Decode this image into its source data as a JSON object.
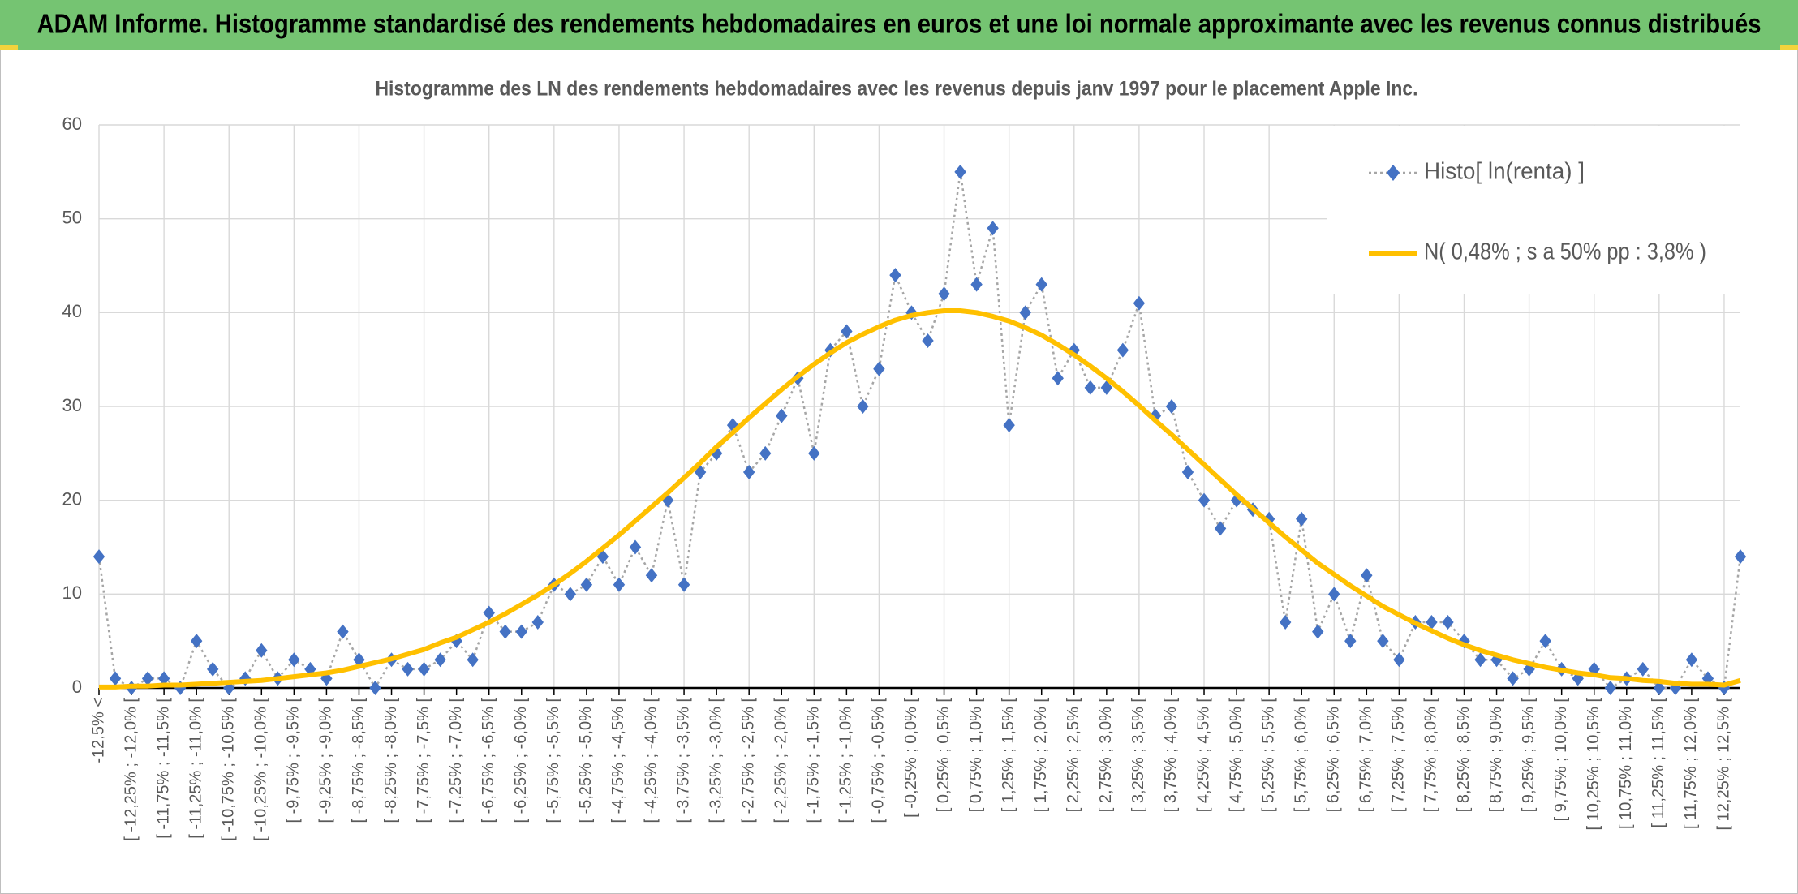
{
  "header": {
    "title": "ADAM Informe. Histogramme standardisé des rendements hebdomadaires en euros et une loi normale approximante avec les revenus connus distribués"
  },
  "chart_data": {
    "type": "line",
    "title": "Histogramme des LN des rendements hebdomadaires avec les revenus depuis janv 1997 pour le placement Apple Inc.",
    "categories": [
      "-12,5% <",
      null,
      "[ -12,25% ; -12,0% [",
      null,
      "[ -11,75% ; -11,5% [",
      null,
      "[ -11,25% ; -11,0% [",
      null,
      "[ -10,75% ; -10,5% [",
      null,
      "[ -10,25% ; -10,0% [",
      null,
      "[ -9,75% ; -9,5% [",
      null,
      "[ -9,25% ; -9,0% [",
      null,
      "[ -8,75% ; -8,5% [",
      null,
      "[ -8,25% ; -8,0% [",
      null,
      "[ -7,75% ; -7,5% [",
      null,
      "[ -7,25% ; -7,0% [",
      null,
      "[ -6,75% ; -6,5% [",
      null,
      "[ -6,25% ; -6,0% [",
      null,
      "[ -5,75% ; -5,5% [",
      null,
      "[ -5,25% ; -5,0% [",
      null,
      "[ -4,75% ; -4,5% [",
      null,
      "[ -4,25% ; -4,0% [",
      null,
      "[ -3,75% ; -3,5% [",
      null,
      "[ -3,25% ; -3,0% [",
      null,
      "[ -2,75% ; -2,5% [",
      null,
      "[ -2,25% ; -2,0% [",
      null,
      "[ -1,75% ; -1,5% [",
      null,
      "[ -1,25% ; -1,0% [",
      null,
      "[ -0,75% ; -0,5% [",
      null,
      "[ -0,25% ; 0,0% [",
      null,
      "[ 0,25% ; 0,5% [",
      null,
      "[ 0,75% ; 1,0% [",
      null,
      "[ 1,25% ; 1,5% [",
      null,
      "[ 1,75% ; 2,0% [",
      null,
      "[ 2,25% ; 2,5% [",
      null,
      "[ 2,75% ; 3,0% [",
      null,
      "[ 3,25% ; 3,5% [",
      null,
      "[ 3,75% ; 4,0% [",
      null,
      "[ 4,25% ; 4,5% [",
      null,
      "[ 4,75% ; 5,0% [",
      null,
      "[ 5,25% ; 5,5% [",
      null,
      "[ 5,75% ; 6,0% [",
      null,
      "[ 6,25% ; 6,5% [",
      null,
      "[ 6,75% ; 7,0% [",
      null,
      "[ 7,25% ; 7,5% [",
      null,
      "[ 7,75% ; 8,0% [",
      null,
      "[ 8,25% ; 8,5% [",
      null,
      "[ 8,75% ; 9,0% [",
      null,
      "[ 9,25% ; 9,5% [",
      null,
      "[ 9,75% ; 10,0% [",
      null,
      "[ 10,25% ; 10,5% [",
      null,
      "[ 10,75% ; 11,0% [",
      null,
      "[ 11,25% ; 11,5% [",
      null,
      "[ 11,75% ; 12,0% [",
      null,
      "[ 12,25% ; 12,5% [",
      null
    ],
    "series": [
      {
        "name": "Histo[ ln(renta) ]",
        "color": "#4472c4",
        "line_color": "#a6a6a6",
        "line_style": "dotted",
        "marker": "diamond",
        "values": [
          14,
          1,
          0,
          1,
          1,
          0,
          5,
          2,
          0,
          1,
          4,
          1,
          3,
          2,
          1,
          6,
          3,
          0,
          3,
          2,
          2,
          3,
          5,
          3,
          8,
          6,
          6,
          7,
          11,
          10,
          11,
          14,
          11,
          15,
          12,
          20,
          11,
          23,
          25,
          28,
          23,
          25,
          29,
          33,
          25,
          36,
          38,
          30,
          34,
          44,
          40,
          37,
          42,
          55,
          43,
          49,
          28,
          40,
          43,
          33,
          36,
          32,
          32,
          36,
          41,
          29,
          30,
          23,
          20,
          17,
          20,
          19,
          18,
          7,
          18,
          6,
          10,
          5,
          12,
          5,
          3,
          7,
          7,
          7,
          5,
          3,
          3,
          1,
          2,
          5,
          2,
          1,
          2,
          0,
          1,
          2,
          0,
          0,
          3,
          1,
          0,
          14
        ]
      },
      {
        "name": "N( 0,48% ; s a 50% pp : 3,8% )",
        "color": "#ffc000",
        "line_style": "solid",
        "marker": "none",
        "values": [
          0.1,
          0.1,
          0.2,
          0.2,
          0.3,
          0.3,
          0.4,
          0.5,
          0.6,
          0.7,
          0.8,
          1.0,
          1.2,
          1.4,
          1.6,
          1.9,
          2.3,
          2.7,
          3.1,
          3.6,
          4.1,
          4.8,
          5.4,
          6.2,
          7.0,
          7.9,
          8.9,
          9.9,
          11.0,
          12.2,
          13.5,
          14.9,
          16.3,
          17.8,
          19.3,
          20.8,
          22.4,
          24.0,
          25.7,
          27.2,
          28.8,
          30.3,
          31.8,
          33.2,
          34.5,
          35.7,
          36.8,
          37.7,
          38.5,
          39.2,
          39.7,
          40.0,
          40.2,
          40.2,
          40.0,
          39.6,
          39.1,
          38.4,
          37.6,
          36.6,
          35.5,
          34.3,
          33.0,
          31.6,
          30.1,
          28.5,
          27.0,
          25.4,
          23.8,
          22.2,
          20.6,
          19.1,
          17.6,
          16.1,
          14.7,
          13.3,
          12.1,
          10.9,
          9.8,
          8.7,
          7.8,
          6.9,
          6.1,
          5.3,
          4.6,
          4.0,
          3.5,
          3.0,
          2.6,
          2.2,
          1.9,
          1.6,
          1.4,
          1.1,
          1.0,
          0.8,
          0.7,
          0.5,
          0.4,
          0.4,
          0.3,
          0.8
        ]
      }
    ],
    "ylim": [
      0,
      60
    ],
    "yticks": [
      0,
      10,
      20,
      30,
      40,
      50,
      60
    ],
    "grid": true,
    "legend": "top-right"
  }
}
